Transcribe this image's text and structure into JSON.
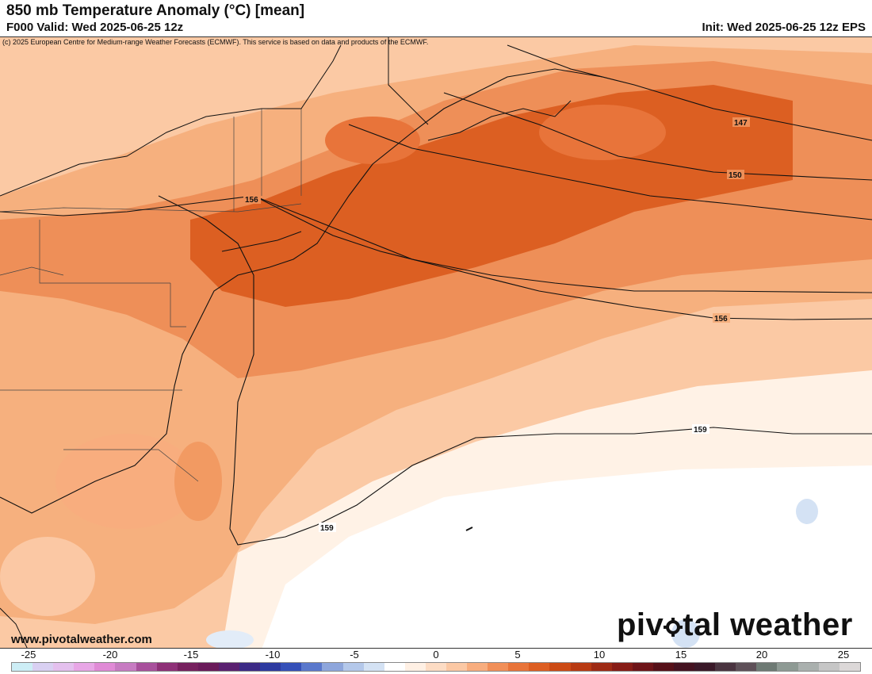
{
  "header": {
    "title": "850 mb Temperature Anomaly (°C) [mean]",
    "valid": "F000 Valid: Wed 2025-06-25 12z",
    "init": "Init: Wed 2025-06-25 12z EPS",
    "copyright": "(c) 2025 European Centre for Medium-range Weather Forecasts (ECMWF). This service is based on data and products of the ECMWF."
  },
  "map": {
    "contour_labels": [
      "147",
      "150",
      "156",
      "156",
      "159",
      "159"
    ]
  },
  "footer": {
    "website": "www.pivotalweather.com",
    "logo_part1": "piv",
    "logo_part2": "tal weather"
  },
  "color_scale": {
    "tick_labels": [
      "-25",
      "-20",
      "-15",
      "-10",
      "-5",
      "0",
      "5",
      "10",
      "15",
      "20",
      "25"
    ],
    "colors": [
      "#cdeef6",
      "#d9d0f2",
      "#e4c0ee",
      "#e8a6e6",
      "#e08ad6",
      "#c77bc2",
      "#a8509c",
      "#8e3077",
      "#76205e",
      "#6a1a5a",
      "#5a2070",
      "#3c2a86",
      "#2d3aa0",
      "#3550b8",
      "#5a78cc",
      "#8ea6dc",
      "#b4c8ea",
      "#d4e2f4",
      "#ffffff",
      "#fff0e4",
      "#fddcc4",
      "#fbc8a4",
      "#f8ad7e",
      "#f18f58",
      "#e8743a",
      "#dd5e22",
      "#cc4a14",
      "#b83a12",
      "#9e2a14",
      "#871c16",
      "#6e1418",
      "#561018",
      "#441220",
      "#3a1828",
      "#4a3440",
      "#5e5058",
      "#6e7a74",
      "#8e9a94",
      "#aab0ae",
      "#c6c6c6",
      "#dcd8d8"
    ]
  }
}
